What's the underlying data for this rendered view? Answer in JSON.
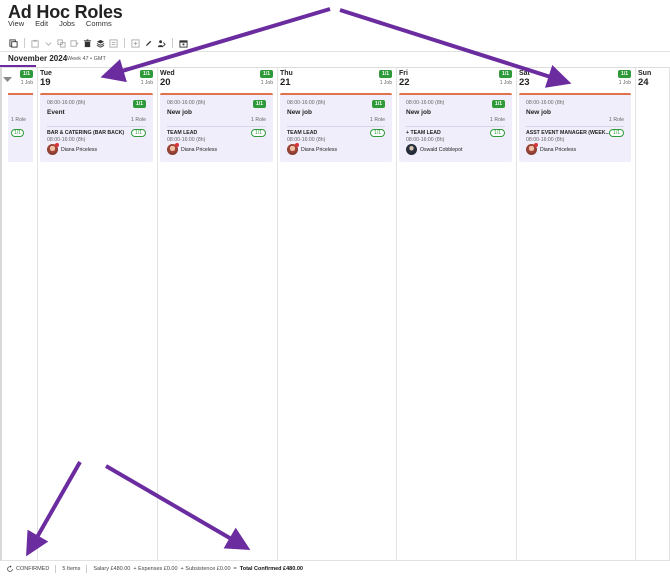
{
  "app": {
    "title": "Ad Hoc Roles"
  },
  "menu": [
    "View",
    "Edit",
    "Jobs",
    "Comms"
  ],
  "toolbar": [
    "copy-icon",
    "paste-icon",
    "duplicate-icon",
    "clone-icon",
    "delete-icon",
    "stack-icon",
    "archive-icon",
    "add-icon",
    "edit-icon",
    "people-icon",
    "calendar-icon"
  ],
  "period": {
    "label": "November 2024",
    "sub": "Week 47 • GMT"
  },
  "partial_day": {
    "badge": "1/1",
    "jobs": "1 Job",
    "roles": "1 Role",
    "role_badge": "1/1"
  },
  "days": [
    {
      "name": "Tue",
      "num": "19",
      "badge": "1/1",
      "jobs": "1 Job",
      "card": {
        "time": "08:00-16:00 (8h)",
        "badge": "1/1",
        "title": "Event",
        "roles": "1 Role",
        "role": {
          "name": "BAR & CATERING (BAR BACK)",
          "badge": "1/1",
          "time": "08:00-16:00 (8h)",
          "person": "Diana Priceless",
          "avatar": "diana"
        }
      }
    },
    {
      "name": "Wed",
      "num": "20",
      "badge": "1/1",
      "jobs": "1 Job",
      "card": {
        "time": "08:00-16:00 (8h)",
        "badge": "1/1",
        "title": "New job",
        "roles": "1 Role",
        "role": {
          "name": "TEAM LEAD",
          "badge": "1/1",
          "time": "08:00-16:00 (8h)",
          "person": "Diana Priceless",
          "avatar": "diana"
        }
      }
    },
    {
      "name": "Thu",
      "num": "21",
      "badge": "1/1",
      "jobs": "1 Job",
      "card": {
        "time": "08:00-16:00 (8h)",
        "badge": "1/1",
        "title": "New job",
        "roles": "1 Role",
        "role": {
          "name": "TEAM LEAD",
          "badge": "1/1",
          "time": "08:00-16:00 (8h)",
          "person": "Diana Priceless",
          "avatar": "diana"
        }
      }
    },
    {
      "name": "Fri",
      "num": "22",
      "badge": "1/1",
      "jobs": "1 Job",
      "card": {
        "time": "08:00-16:00 (8h)",
        "badge": "1/1",
        "title": "New job",
        "roles": "1 Role",
        "role": {
          "name": "+ TEAM LEAD",
          "badge": "1/1",
          "time": "08:00-16:00 (8h)",
          "person": "Oswald Cobblepot",
          "avatar": "oswald"
        }
      }
    },
    {
      "name": "Sat",
      "num": "23",
      "badge": "1/1",
      "jobs": "1 Job",
      "card": {
        "time": "08:00-16:00 (8h)",
        "badge": "",
        "title": "New job",
        "roles": "1 Role",
        "role": {
          "name": "ASST EVENT MANAGER (WEEK...",
          "badge": "1/1",
          "time": "08:00-16:00 (8h)",
          "person": "Diana Priceless",
          "avatar": "diana"
        }
      }
    },
    {
      "name": "Sun",
      "num": "24",
      "badge": "",
      "jobs": "",
      "card": null
    }
  ],
  "footer": {
    "status": "CONFIRMED",
    "items": "5 Items",
    "salary": "Salary £480.00",
    "expenses": "+ Expenses £0.00",
    "subsistence": "+ Subsistence £0.00",
    "sep": "=",
    "total": "Total Confirmed £480.00"
  },
  "colors": {
    "accent": "#6b2ca0",
    "badge_green": "#2e9a3a",
    "card_bg": "#f1eefb",
    "card_top": "#e0714a",
    "arrow": "#6b2ca0"
  }
}
